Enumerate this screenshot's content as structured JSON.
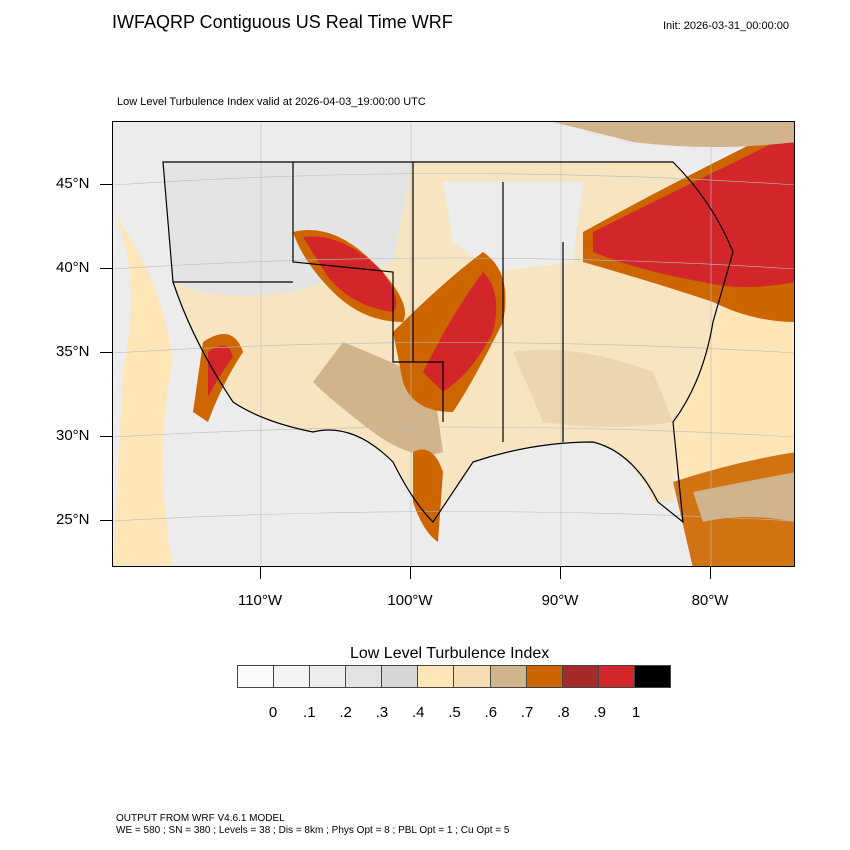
{
  "header": {
    "title": "IWFAQRP Contiguous US Real Time WRF",
    "init": "Init: 2026-03-31_00:00:00",
    "subtitle": "Low Level Turbulence Index valid at 2026-04-03_19:00:00 UTC"
  },
  "map": {
    "lat_labels": [
      "45°N",
      "40°N",
      "35°N",
      "30°N",
      "25°N"
    ],
    "lon_labels": [
      "110°W",
      "100°W",
      "90°W",
      "80°W"
    ]
  },
  "colorbar": {
    "title": "Low Level Turbulence Index",
    "labels": [
      "0",
      ".1",
      ".2",
      ".3",
      ".4",
      ".5",
      ".6",
      ".7",
      ".8",
      ".9",
      "1"
    ],
    "colors": [
      "#fafafa",
      "#f4f4f4",
      "#eeeeee",
      "#e3e3e3",
      "#d6d6d6",
      "#fee6b8",
      "#f5dcb2",
      "#d2b48c",
      "#cd6600",
      "#a52a2a",
      "#d2262a",
      "#000000"
    ]
  },
  "footer": {
    "line1": "OUTPUT FROM WRF V4.6.1 MODEL",
    "line2": "WE = 580 ; SN = 380 ; Levels = 38 ; Dis = 8km ; Phys Opt = 8 ; PBL Opt = 1 ; Cu Opt = 5"
  }
}
